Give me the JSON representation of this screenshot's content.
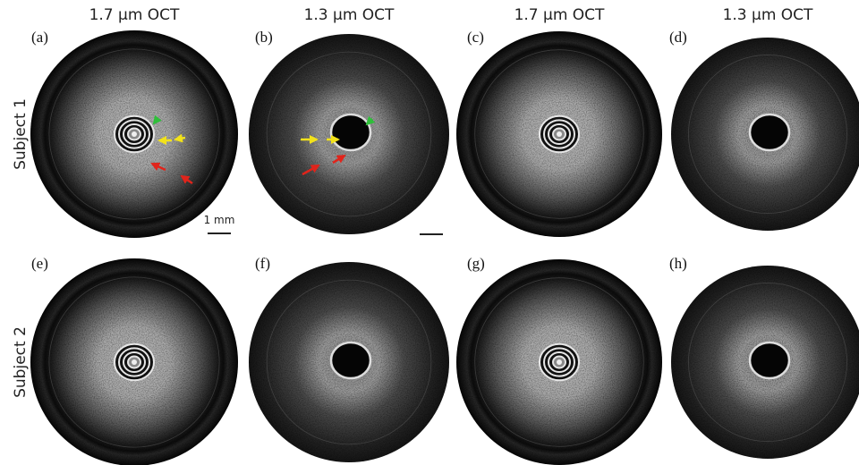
{
  "columns": [
    "1.7 μm OCT",
    "1.3 μm OCT",
    "1.7 μm OCT",
    "1.3 μm OCT"
  ],
  "panels": [
    "(a)",
    "(b)",
    "(c)",
    "(d)",
    "(e)",
    "(f)",
    "(g)",
    "(h)"
  ],
  "rows": [
    "Subject 1",
    "Subject 2"
  ],
  "scale_label": "1 mm"
}
